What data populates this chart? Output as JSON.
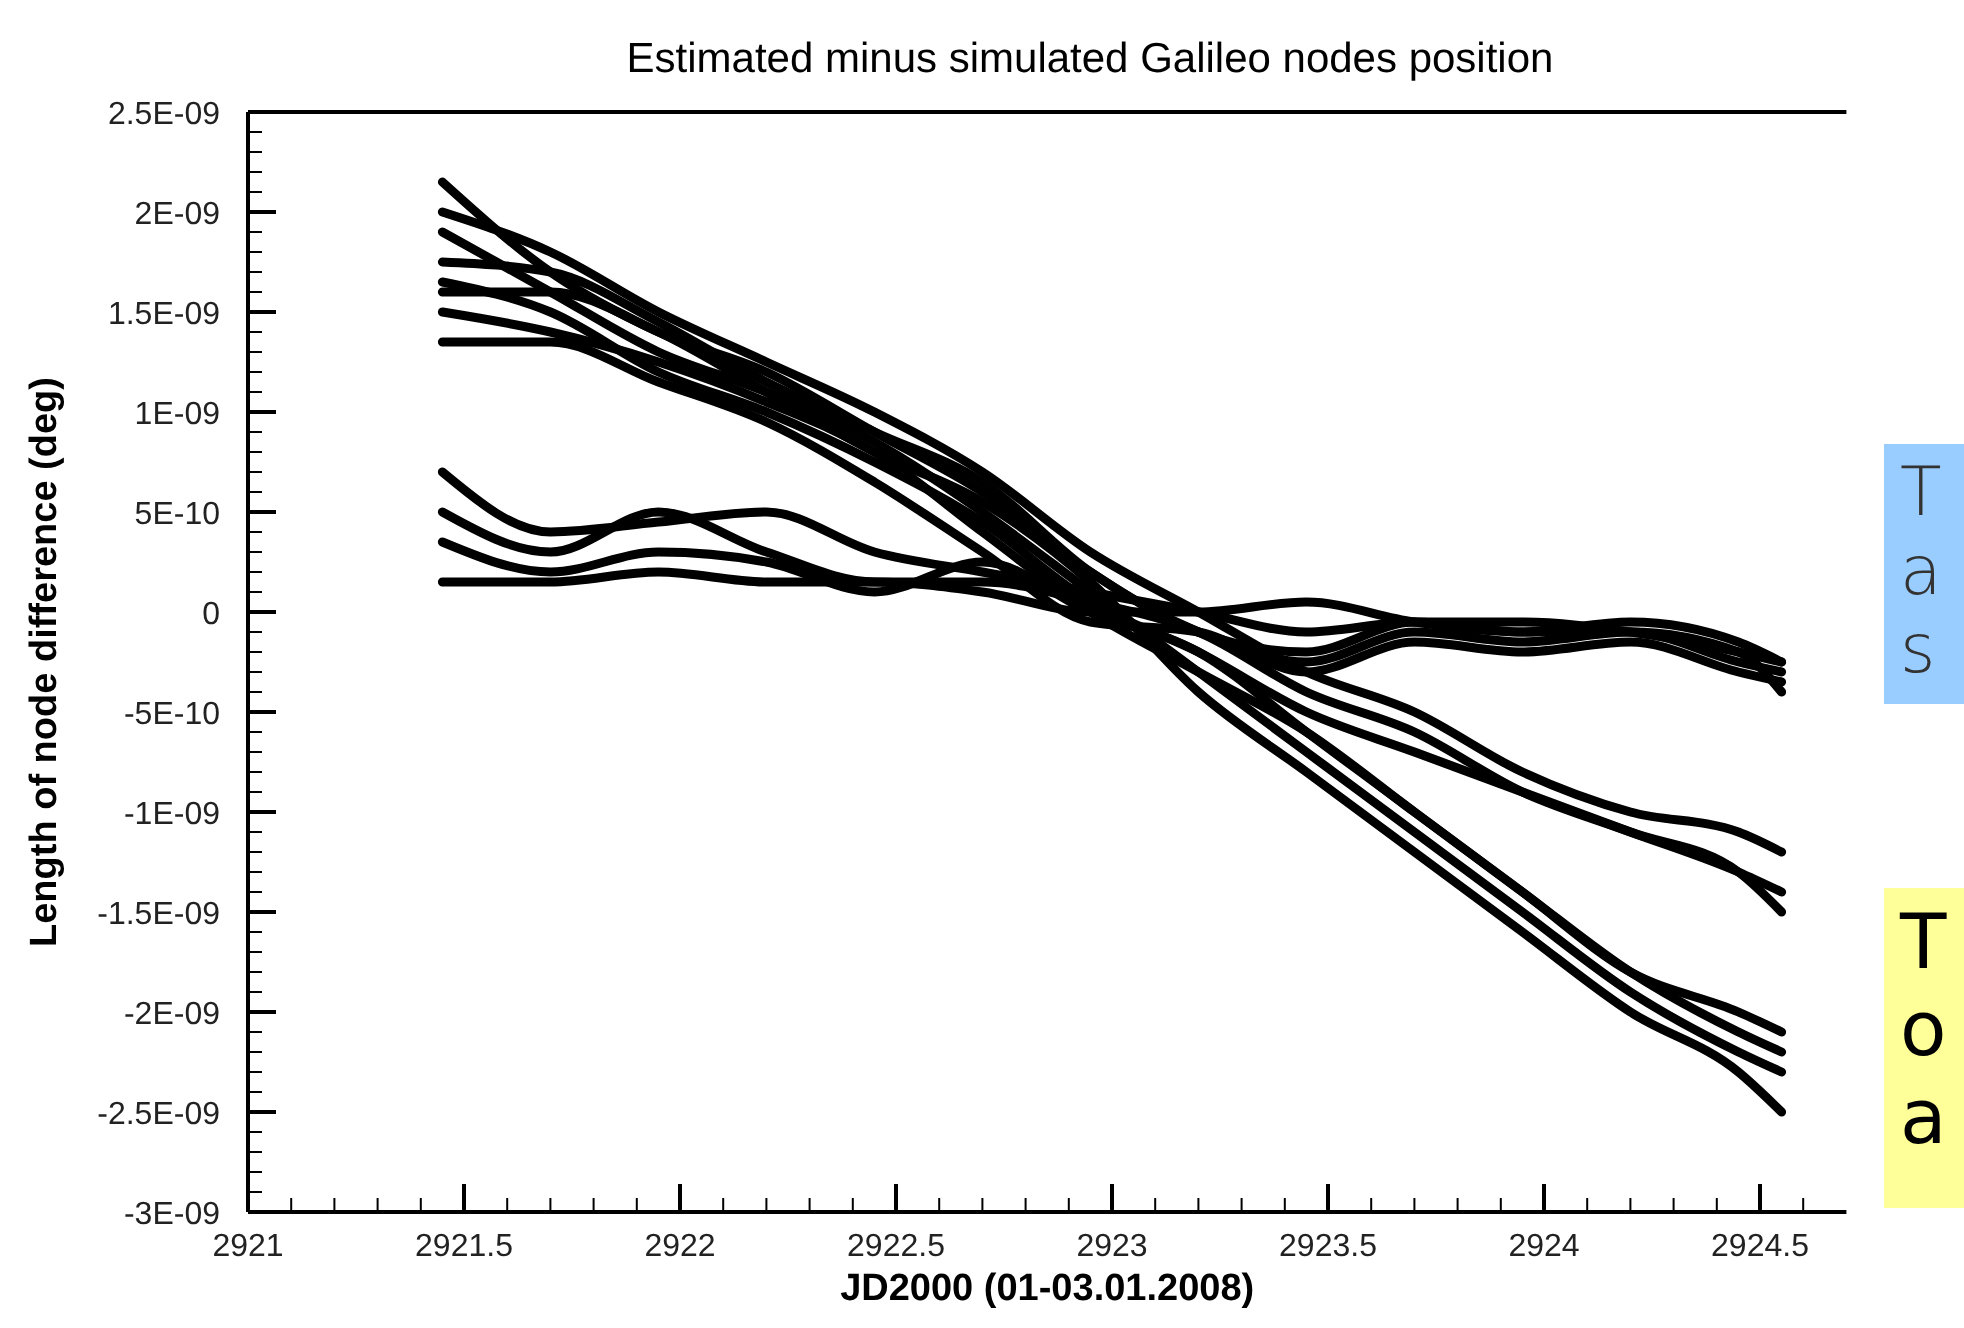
{
  "chart_data": {
    "type": "line",
    "title": "Estimated minus simulated Galileo nodes position",
    "xlabel": "JD2000 (01-03.01.2008)",
    "ylabel": "Length of node difference (deg)",
    "annotations": [
      "T\na\ns",
      "T\no\na"
    ],
    "x": [
      2921.45,
      2921.7,
      2921.95,
      2922.2,
      2922.45,
      2922.7,
      2922.95,
      2923.2,
      2923.45,
      2923.7,
      2923.95,
      2924.2,
      2924.45,
      2924.55
    ],
    "series": [
      {
        "color": "#000000",
        "values": [
          2.15e-09,
          1.7e-09,
          1.4e-09,
          1.2e-09,
          9e-10,
          6e-10,
          2e-10,
          -1e-10,
          -2e-10,
          -5e-11,
          -1e-10,
          -1e-10,
          -2.5e-10,
          -3e-10
        ]
      },
      {
        "color": "#000000",
        "values": [
          2e-09,
          1.8e-09,
          1.5e-09,
          1.25e-09,
          1e-09,
          7e-10,
          3e-10,
          0,
          -3e-10,
          -5e-10,
          -8e-10,
          -1e-09,
          -1.1e-09,
          -1.2e-09
        ]
      },
      {
        "color": "#000000",
        "values": [
          1.9e-09,
          1.6e-09,
          1.3e-09,
          1.1e-09,
          8.5e-10,
          5e-10,
          1e-10,
          -3e-10,
          -7e-10,
          -1.1e-09,
          -1.5e-09,
          -1.9e-09,
          -2.2e-09,
          -2.3e-09
        ]
      },
      {
        "color": "#000000",
        "values": [
          1.75e-09,
          1.7e-09,
          1.45e-09,
          1.15e-09,
          9e-10,
          6.5e-10,
          2e-10,
          -1e-10,
          -2.5e-10,
          -1e-10,
          -1.5e-10,
          -1e-10,
          -2e-10,
          -4e-10
        ]
      },
      {
        "color": "#000000",
        "values": [
          1.65e-09,
          1.5e-09,
          1.2e-09,
          1e-09,
          7.5e-10,
          4.5e-10,
          5e-11,
          -2e-10,
          -5e-10,
          -7e-10,
          -9e-10,
          -1.1e-09,
          -1.3e-09,
          -1.5e-09
        ]
      },
      {
        "color": "#000000",
        "values": [
          1.6e-09,
          1.6e-09,
          1.4e-09,
          1.1e-09,
          8e-10,
          5.5e-10,
          1.5e-10,
          -4e-10,
          -8e-10,
          -1.2e-09,
          -1.6e-09,
          -2e-09,
          -2.3e-09,
          -2.5e-09
        ]
      },
      {
        "color": "#000000",
        "values": [
          1.5e-09,
          1.4e-09,
          1.25e-09,
          1.05e-09,
          8e-10,
          4e-10,
          0,
          -3e-10,
          -6e-10,
          -1e-09,
          -1.4e-09,
          -1.8e-09,
          -2.1e-09,
          -2.2e-09
        ]
      },
      {
        "color": "#000000",
        "values": [
          1.35e-09,
          1.35e-09,
          1.15e-09,
          9.5e-10,
          6.5e-10,
          3e-10,
          -5e-11,
          -1e-10,
          -3e-10,
          -1.5e-10,
          -2e-10,
          -1.5e-10,
          -3e-10,
          -3.5e-10
        ]
      },
      {
        "color": "#000000",
        "values": [
          7e-10,
          4e-10,
          4.5e-10,
          5e-10,
          3e-10,
          2e-10,
          1e-10,
          0,
          -1e-10,
          -5e-11,
          -5e-11,
          -1e-10,
          -2e-10,
          -2.5e-10
        ]
      },
      {
        "color": "#000000",
        "values": [
          5e-10,
          3e-10,
          5e-10,
          3e-10,
          1.5e-10,
          1.5e-10,
          5e-11,
          -1e-10,
          -4e-10,
          -6e-10,
          -9e-10,
          -1.1e-09,
          -1.3e-09,
          -1.4e-09
        ]
      },
      {
        "color": "#000000",
        "values": [
          3.5e-10,
          2e-10,
          3e-10,
          2.5e-10,
          1e-10,
          2.5e-10,
          0,
          -2e-10,
          -6e-10,
          -1e-09,
          -1.4e-09,
          -1.8e-09,
          -2e-09,
          -2.1e-09
        ]
      },
      {
        "color": "#000000",
        "values": [
          1.5e-10,
          1.5e-10,
          2e-10,
          1.5e-10,
          1.5e-10,
          1e-10,
          0,
          0,
          5e-11,
          -5e-11,
          -1e-10,
          -5e-11,
          -1.5e-10,
          -2.5e-10
        ]
      }
    ],
    "xlim": [
      2921,
      2924.7
    ],
    "xticks": [
      2921,
      {
        "value": 2921.1,
        "label": null
      },
      {
        "value": 2921.2,
        "label": null
      },
      {
        "value": 2921.3,
        "label": null
      },
      {
        "value": 2921.4,
        "label": null
      },
      2921.5,
      {
        "value": 2921.6,
        "label": null
      },
      {
        "value": 2921.7,
        "label": null
      },
      {
        "value": 2921.8,
        "label": null
      },
      {
        "value": 2921.9,
        "label": null
      },
      2922,
      {
        "value": 2922.1,
        "label": null
      },
      {
        "value": 2922.2,
        "label": null
      },
      {
        "value": 2922.3,
        "label": null
      },
      {
        "value": 2922.4,
        "label": null
      },
      2922.5,
      {
        "value": 2922.6,
        "label": null
      },
      {
        "value": 2922.7,
        "label": null
      },
      {
        "value": 2922.8,
        "label": null
      },
      {
        "value": 2922.9,
        "label": null
      },
      2923,
      {
        "value": 2923.1,
        "label": null
      },
      {
        "value": 2923.2,
        "label": null
      },
      {
        "value": 2923.3,
        "label": null
      },
      {
        "value": 2923.4,
        "label": null
      },
      2923.5,
      {
        "value": 2923.6,
        "label": null
      },
      {
        "value": 2923.7,
        "label": null
      },
      {
        "value": 2923.8,
        "label": null
      },
      {
        "value": 2923.9,
        "label": null
      },
      2924,
      {
        "value": 2924.1,
        "label": null
      },
      {
        "value": 2924.2,
        "label": null
      },
      {
        "value": 2924.3,
        "label": null
      },
      {
        "value": 2924.4,
        "label": null
      },
      2924.5,
      {
        "value": 2924.6,
        "label": null
      }
    ],
    "ylim": [
      -3e-09,
      2.5e-09
    ],
    "yticks": [
      {
        "value": -3e-09,
        "label": "-3E-09"
      },
      {
        "value": -2.5e-09,
        "label": "-2.5E-09"
      },
      {
        "value": -2e-09,
        "label": "-2E-09"
      },
      {
        "value": -1.5e-09,
        "label": "-1.5E-09"
      },
      {
        "value": -1e-09,
        "label": "-1E-09"
      },
      {
        "value": -5e-10,
        "label": "-5E-10"
      },
      0,
      {
        "value": 5e-10,
        "label": "5E-10"
      },
      {
        "value": 1e-09,
        "label": "1E-09"
      },
      {
        "value": 1.5e-09,
        "label": "1.5E-09"
      },
      {
        "value": 2e-09,
        "label": "2E-09"
      },
      {
        "value": 2.5e-09,
        "label": "2.5E-09"
      }
    ],
    "grid": false,
    "line_style": "solid"
  }
}
